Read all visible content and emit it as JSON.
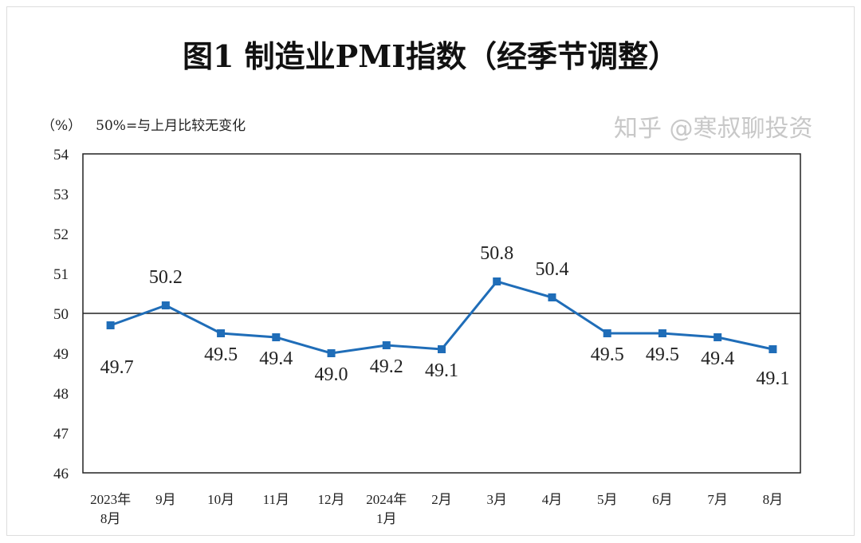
{
  "title": "图1  制造业PMI指数（经季节调整）",
  "unit_label": "（%）",
  "note": "50%=与上月比较无变化",
  "watermark": "知乎 @寒叔聊投资",
  "chart_data": {
    "type": "line",
    "title": "图1  制造业PMI指数（经季节调整）",
    "ylabel": "（%）",
    "categories": [
      [
        "2023年",
        "8月"
      ],
      [
        "9月"
      ],
      [
        "10月"
      ],
      [
        "11月"
      ],
      [
        "12月"
      ],
      [
        "2024年",
        "1月"
      ],
      [
        "2月"
      ],
      [
        "3月"
      ],
      [
        "4月"
      ],
      [
        "5月"
      ],
      [
        "6月"
      ],
      [
        "7月"
      ],
      [
        "8月"
      ]
    ],
    "values": [
      49.7,
      50.2,
      49.5,
      49.4,
      49.0,
      49.2,
      49.1,
      50.8,
      50.4,
      49.5,
      49.5,
      49.4,
      49.1
    ],
    "data_labels": [
      "49.7",
      "50.2",
      "49.5",
      "49.4",
      "49.0",
      "49.2",
      "49.1",
      "50.8",
      "50.4",
      "49.5",
      "49.5",
      "49.4",
      "49.1"
    ],
    "ylim": [
      46,
      54
    ],
    "yticks": [
      46,
      47,
      48,
      49,
      50,
      51,
      52,
      53,
      54
    ],
    "reference_line": 50,
    "grid": false,
    "line_color": "#1f6db8",
    "marker": "square"
  }
}
